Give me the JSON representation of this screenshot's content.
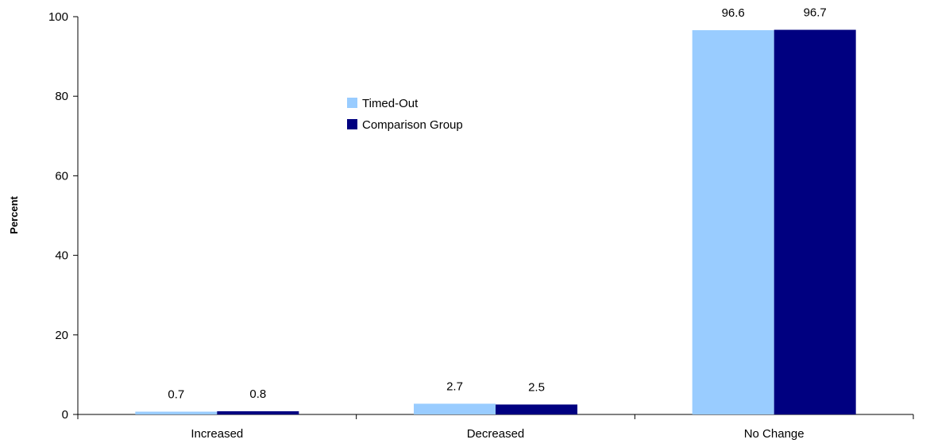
{
  "chart_data": {
    "type": "bar",
    "title": "",
    "xlabel": "",
    "ylabel": "Percent",
    "ylim": [
      0,
      100
    ],
    "yticks": [
      0,
      20,
      40,
      60,
      80,
      100
    ],
    "grid": false,
    "legend_position": "top-center",
    "categories": [
      "Increased",
      "Decreased",
      "No Change"
    ],
    "series": [
      {
        "name": "Timed-Out",
        "color": "#99ccff",
        "values": [
          0.7,
          2.7,
          96.6
        ]
      },
      {
        "name": "Comparison Group",
        "color": "#000080",
        "values": [
          0.8,
          2.5,
          96.7
        ]
      }
    ]
  }
}
